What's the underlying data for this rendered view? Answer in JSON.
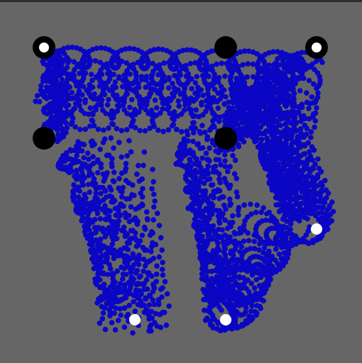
{
  "colors": {
    "background": "#666666",
    "top_bar": "#2a2e2e",
    "trail": "#0a06c4",
    "node_black": "#000000",
    "node_white": "#ffffff"
  },
  "scene": {
    "type": "particle-trail-simulation",
    "anchor_style": "black ring with white center",
    "node_style": "solid black disc",
    "endpoint_style": "small white dot"
  }
}
